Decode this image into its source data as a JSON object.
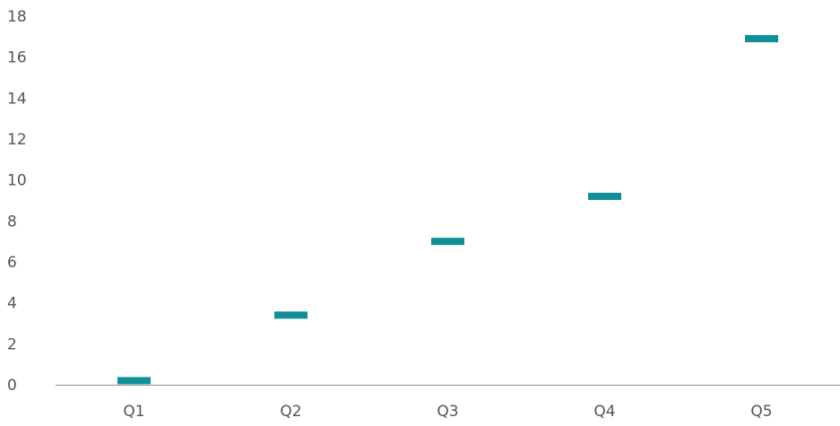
{
  "chart_data": {
    "type": "scatter",
    "title": "",
    "xlabel": "",
    "ylabel": "",
    "categories": [
      "Q1",
      "Q2",
      "Q3",
      "Q4",
      "Q5"
    ],
    "series": [
      {
        "values": [
          0.2,
          3.4,
          7.0,
          9.2,
          16.9
        ]
      }
    ],
    "ylim": [
      0,
      18
    ],
    "yticks": [
      0,
      2,
      4,
      6,
      8,
      10,
      12,
      14,
      16,
      18
    ],
    "marker": "horizontal-bar",
    "grid": false,
    "legend": "none",
    "colors": {
      "marker": "#0f8f96",
      "axis": "#8c8c8c",
      "text": "#555555"
    }
  }
}
